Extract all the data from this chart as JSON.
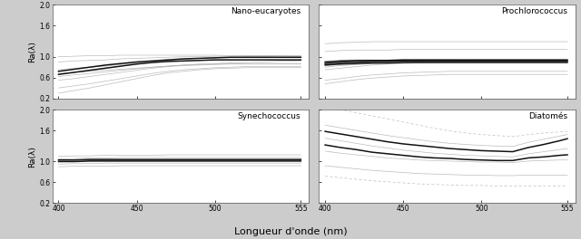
{
  "wavelengths": [
    400,
    410,
    420,
    430,
    440,
    450,
    460,
    470,
    480,
    490,
    500,
    510,
    520,
    530,
    540,
    550,
    555
  ],
  "titles": [
    "Nano-eucaryotes",
    "Prochlorococcus",
    "Synechococcus",
    "Diatomés"
  ],
  "xlabel": "Longueur d'onde (nm)",
  "ylabel": "Ra(λ)",
  "ylim": [
    0.2,
    2.0
  ],
  "xlim": [
    396,
    560
  ],
  "xticks": [
    400,
    450,
    500,
    555
  ],
  "yticks": [
    0.2,
    0.6,
    1.0,
    1.6,
    2.0
  ],
  "fig_bg": "#cccccc",
  "panel_bg": "#ffffff",
  "nano_light": [
    [
      0.68,
      0.7,
      0.72,
      0.74,
      0.76,
      0.78,
      0.8,
      0.82,
      0.84,
      0.86,
      0.87,
      0.88,
      0.89,
      0.9,
      0.91,
      0.92,
      0.92
    ],
    [
      0.62,
      0.65,
      0.68,
      0.71,
      0.74,
      0.77,
      0.8,
      0.82,
      0.84,
      0.85,
      0.86,
      0.87,
      0.87,
      0.87,
      0.87,
      0.87,
      0.87
    ],
    [
      0.55,
      0.58,
      0.62,
      0.66,
      0.7,
      0.74,
      0.78,
      0.81,
      0.83,
      0.84,
      0.85,
      0.86,
      0.86,
      0.86,
      0.86,
      0.86,
      0.86
    ],
    [
      0.75,
      0.78,
      0.8,
      0.82,
      0.85,
      0.88,
      0.91,
      0.93,
      0.95,
      0.97,
      0.98,
      0.99,
      1.0,
      1.0,
      1.01,
      1.01,
      1.01
    ],
    [
      0.9,
      0.92,
      0.93,
      0.94,
      0.96,
      0.97,
      0.98,
      0.99,
      1.0,
      1.0,
      1.01,
      1.01,
      1.02,
      1.02,
      1.02,
      1.02,
      1.02
    ],
    [
      0.4,
      0.44,
      0.48,
      0.53,
      0.58,
      0.63,
      0.68,
      0.72,
      0.75,
      0.77,
      0.79,
      0.8,
      0.81,
      0.81,
      0.81,
      0.81,
      0.81
    ],
    [
      0.3,
      0.35,
      0.4,
      0.46,
      0.52,
      0.58,
      0.64,
      0.69,
      0.72,
      0.75,
      0.77,
      0.78,
      0.79,
      0.79,
      0.79,
      0.79,
      0.79
    ],
    [
      1.0,
      1.01,
      1.02,
      1.02,
      1.03,
      1.03,
      1.03,
      1.03,
      1.03,
      1.03,
      1.03,
      1.02,
      1.02,
      1.02,
      1.02,
      1.01,
      1.01
    ]
  ],
  "nano_dark": [
    [
      0.72,
      0.76,
      0.8,
      0.84,
      0.87,
      0.9,
      0.92,
      0.94,
      0.96,
      0.97,
      0.98,
      0.99,
      0.99,
      0.99,
      0.99,
      0.99,
      0.99
    ],
    [
      0.66,
      0.7,
      0.74,
      0.78,
      0.82,
      0.86,
      0.89,
      0.91,
      0.92,
      0.93,
      0.94,
      0.94,
      0.94,
      0.94,
      0.94,
      0.94,
      0.94
    ]
  ],
  "prochloro_light": [
    [
      1.25,
      1.27,
      1.28,
      1.29,
      1.29,
      1.29,
      1.29,
      1.29,
      1.29,
      1.29,
      1.29,
      1.29,
      1.29,
      1.29,
      1.29,
      1.29,
      1.29
    ],
    [
      1.1,
      1.12,
      1.13,
      1.13,
      1.13,
      1.14,
      1.14,
      1.14,
      1.14,
      1.14,
      1.14,
      1.14,
      1.14,
      1.14,
      1.14,
      1.14,
      1.14
    ],
    [
      0.8,
      0.83,
      0.85,
      0.87,
      0.88,
      0.89,
      0.9,
      0.91,
      0.91,
      0.92,
      0.92,
      0.92,
      0.92,
      0.92,
      0.92,
      0.92,
      0.92
    ],
    [
      0.75,
      0.78,
      0.81,
      0.84,
      0.86,
      0.87,
      0.88,
      0.89,
      0.9,
      0.9,
      0.9,
      0.9,
      0.9,
      0.9,
      0.9,
      0.9,
      0.9
    ],
    [
      0.55,
      0.58,
      0.62,
      0.65,
      0.67,
      0.69,
      0.7,
      0.71,
      0.72,
      0.72,
      0.72,
      0.72,
      0.72,
      0.72,
      0.72,
      0.72,
      0.72
    ],
    [
      0.48,
      0.52,
      0.56,
      0.59,
      0.61,
      0.63,
      0.64,
      0.65,
      0.66,
      0.66,
      0.66,
      0.66,
      0.66,
      0.66,
      0.66,
      0.66,
      0.66
    ]
  ],
  "prochloro_dark": [
    [
      0.9,
      0.92,
      0.93,
      0.93,
      0.93,
      0.94,
      0.94,
      0.94,
      0.94,
      0.94,
      0.94,
      0.94,
      0.94,
      0.94,
      0.94,
      0.94,
      0.94
    ],
    [
      0.87,
      0.89,
      0.9,
      0.91,
      0.91,
      0.92,
      0.92,
      0.92,
      0.92,
      0.92,
      0.92,
      0.92,
      0.92,
      0.92,
      0.92,
      0.92,
      0.92
    ],
    [
      0.84,
      0.86,
      0.87,
      0.88,
      0.88,
      0.89,
      0.89,
      0.89,
      0.89,
      0.89,
      0.89,
      0.89,
      0.89,
      0.89,
      0.89,
      0.89,
      0.89
    ]
  ],
  "synecho_light": [
    [
      1.1,
      1.11,
      1.11,
      1.12,
      1.12,
      1.12,
      1.12,
      1.13,
      1.13,
      1.13,
      1.13,
      1.13,
      1.13,
      1.13,
      1.13,
      1.13,
      1.13
    ],
    [
      1.05,
      1.06,
      1.07,
      1.07,
      1.08,
      1.08,
      1.08,
      1.08,
      1.08,
      1.08,
      1.08,
      1.08,
      1.08,
      1.08,
      1.08,
      1.08,
      1.08
    ],
    [
      0.95,
      0.96,
      0.96,
      0.97,
      0.97,
      0.97,
      0.97,
      0.97,
      0.97,
      0.97,
      0.97,
      0.97,
      0.97,
      0.97,
      0.97,
      0.97,
      0.97
    ],
    [
      0.9,
      0.91,
      0.91,
      0.91,
      0.92,
      0.92,
      0.92,
      0.92,
      0.92,
      0.92,
      0.92,
      0.92,
      0.92,
      0.92,
      0.92,
      0.92,
      0.92
    ]
  ],
  "synecho_dark": [
    [
      1.03,
      1.03,
      1.04,
      1.04,
      1.04,
      1.04,
      1.04,
      1.04,
      1.04,
      1.04,
      1.04,
      1.04,
      1.04,
      1.04,
      1.04,
      1.04,
      1.04
    ],
    [
      1.0,
      1.0,
      1.01,
      1.01,
      1.01,
      1.01,
      1.01,
      1.01,
      1.01,
      1.01,
      1.01,
      1.01,
      1.01,
      1.01,
      1.01,
      1.01,
      1.01
    ]
  ],
  "diatom_light": [
    [
      1.7,
      1.65,
      1.6,
      1.55,
      1.5,
      1.46,
      1.42,
      1.38,
      1.35,
      1.33,
      1.31,
      1.3,
      1.29,
      1.37,
      1.43,
      1.49,
      1.52
    ],
    [
      1.45,
      1.4,
      1.35,
      1.3,
      1.26,
      1.22,
      1.19,
      1.16,
      1.14,
      1.12,
      1.11,
      1.1,
      1.09,
      1.15,
      1.19,
      1.23,
      1.25
    ],
    [
      1.2,
      1.16,
      1.13,
      1.1,
      1.07,
      1.05,
      1.03,
      1.02,
      1.01,
      1.0,
      0.99,
      0.99,
      0.98,
      1.01,
      1.02,
      1.03,
      1.03
    ],
    [
      0.92,
      0.89,
      0.86,
      0.83,
      0.81,
      0.79,
      0.77,
      0.76,
      0.75,
      0.74,
      0.74,
      0.73,
      0.73,
      0.74,
      0.74,
      0.74,
      0.74
    ]
  ],
  "diatom_dark": [
    [
      1.58,
      1.53,
      1.48,
      1.43,
      1.38,
      1.34,
      1.31,
      1.28,
      1.25,
      1.23,
      1.21,
      1.2,
      1.19,
      1.27,
      1.33,
      1.4,
      1.44
    ],
    [
      1.32,
      1.27,
      1.23,
      1.18,
      1.15,
      1.12,
      1.09,
      1.07,
      1.06,
      1.04,
      1.03,
      1.02,
      1.02,
      1.07,
      1.09,
      1.12,
      1.13
    ]
  ],
  "diatom_dashed": [
    [
      2.05,
      2.0,
      1.94,
      1.88,
      1.82,
      1.76,
      1.7,
      1.64,
      1.59,
      1.55,
      1.52,
      1.5,
      1.48,
      1.52,
      1.55,
      1.57,
      1.58
    ],
    [
      0.72,
      0.69,
      0.66,
      0.63,
      0.61,
      0.59,
      0.57,
      0.56,
      0.55,
      0.54,
      0.54,
      0.53,
      0.53,
      0.53,
      0.53,
      0.53,
      0.53
    ]
  ]
}
